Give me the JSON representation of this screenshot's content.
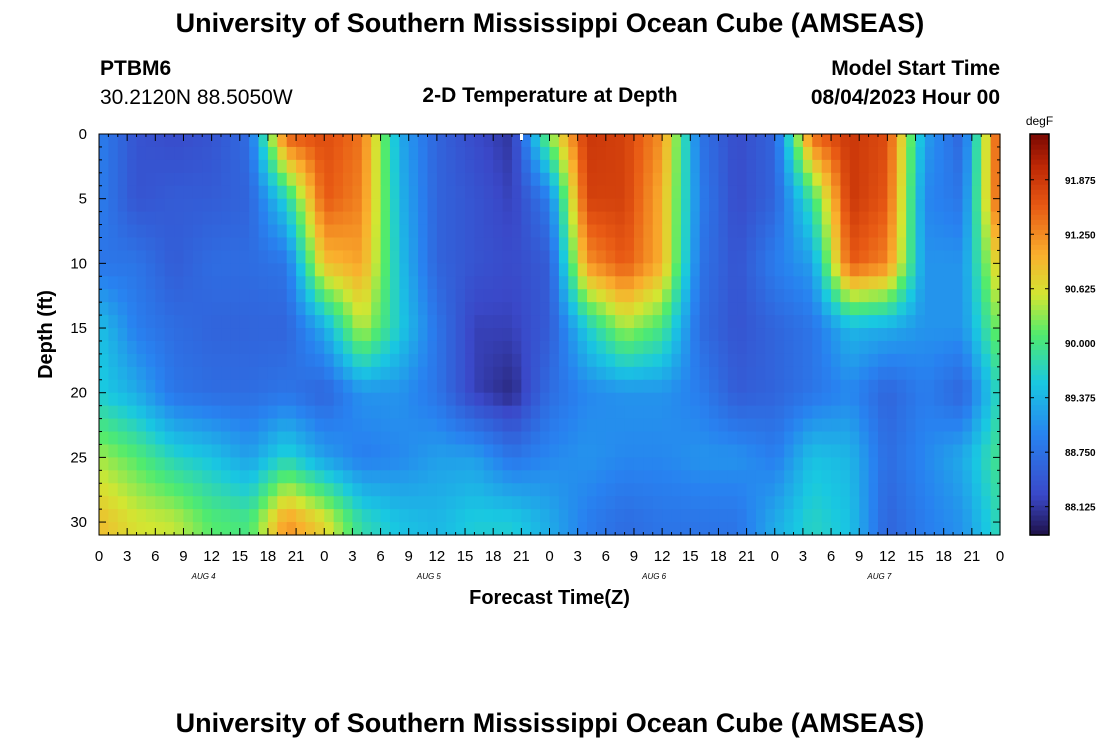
{
  "header": {
    "title": "University of Southern Mississippi Ocean Cube (AMSEAS)",
    "station_id": "PTBM6",
    "station_coords": "30.2120N  88.5050W",
    "plot_title": "2-D Temperature at Depth",
    "model_start_label": "Model Start Time",
    "model_start_value": "08/04/2023 Hour 00"
  },
  "footer": {
    "title": "University of Southern Mississippi Ocean Cube (AMSEAS)"
  },
  "chart_data": {
    "type": "heatmap",
    "title": "2-D Temperature at Depth",
    "xlabel": "Forecast Time(Z)",
    "ylabel": "Depth (ft)",
    "units": "degF",
    "x_range_hours": [
      0,
      96
    ],
    "x_tick_step_hours": 3,
    "x_tick_labels": [
      "0",
      "3",
      "6",
      "9",
      "12",
      "15",
      "18",
      "21",
      "0",
      "3",
      "6",
      "9",
      "12",
      "15",
      "18",
      "21",
      "0",
      "3",
      "6",
      "9",
      "12",
      "15",
      "18",
      "21",
      "0",
      "3",
      "6",
      "9",
      "12",
      "15",
      "18",
      "21",
      "0"
    ],
    "day_labels": [
      {
        "label": "AUG 4",
        "hour": 12
      },
      {
        "label": "AUG 5",
        "hour": 36
      },
      {
        "label": "AUG 6",
        "hour": 60
      },
      {
        "label": "AUG 7",
        "hour": 84
      }
    ],
    "ylim": [
      0,
      31
    ],
    "y_ticks": [
      0,
      5,
      10,
      15,
      20,
      25,
      30
    ],
    "colorbar": {
      "min": 87.8,
      "max": 92.4,
      "tick_labels": [
        "91.875",
        "91.250",
        "90.625",
        "90.000",
        "89.375",
        "88.750",
        "88.125"
      ],
      "tick_values": [
        91.875,
        91.25,
        90.625,
        90.0,
        89.375,
        88.75,
        88.125
      ]
    },
    "depth_levels_ft": [
      0,
      5,
      10,
      15,
      20,
      25,
      30
    ],
    "hours": [
      0,
      4,
      8,
      12,
      16,
      20,
      24,
      28,
      32,
      36,
      40,
      44,
      48,
      52,
      56,
      60,
      64,
      68,
      72,
      76,
      80,
      84,
      88,
      92,
      96
    ],
    "temperature_degF": [
      [
        88.9,
        88.4,
        88.3,
        88.4,
        88.7,
        91.6,
        91.7,
        91.4,
        89.3,
        88.6,
        88.3,
        88.1,
        90.3,
        91.9,
        91.8,
        91.2,
        88.8,
        88.3,
        88.6,
        91.5,
        91.9,
        91.7,
        89.2,
        88.6,
        91.8
      ],
      [
        88.9,
        88.4,
        88.5,
        88.5,
        88.6,
        89.7,
        91.6,
        91.3,
        89.4,
        88.6,
        88.4,
        88.2,
        88.9,
        91.8,
        91.8,
        91.0,
        88.9,
        88.3,
        88.6,
        89.9,
        91.9,
        91.6,
        89.0,
        88.8,
        91.7
      ],
      [
        88.8,
        88.8,
        88.5,
        88.7,
        88.7,
        88.8,
        90.9,
        91.1,
        89.5,
        88.6,
        88.4,
        88.3,
        88.5,
        91.2,
        91.6,
        91.0,
        88.8,
        88.4,
        88.9,
        89.2,
        91.6,
        91.3,
        89.1,
        89.1,
        90.9
      ],
      [
        89.5,
        88.9,
        88.7,
        88.6,
        88.6,
        88.6,
        89.3,
        90.5,
        89.6,
        88.8,
        88.2,
        88.2,
        88.5,
        89.6,
        90.4,
        90.0,
        88.7,
        88.4,
        88.6,
        88.8,
        89.4,
        89.3,
        89.1,
        89.1,
        90.3
      ],
      [
        89.6,
        89.3,
        88.8,
        88.7,
        88.7,
        88.8,
        88.6,
        89.1,
        89.1,
        88.8,
        88.2,
        88.0,
        88.7,
        89.0,
        89.1,
        89.1,
        88.9,
        88.5,
        88.6,
        88.8,
        89.0,
        88.6,
        88.9,
        88.6,
        89.8
      ],
      [
        90.4,
        90.1,
        89.7,
        89.5,
        89.2,
        89.7,
        89.2,
        88.9,
        89.0,
        89.2,
        89.2,
        88.8,
        89.0,
        89.1,
        89.0,
        89.0,
        89.1,
        89.1,
        88.9,
        89.5,
        89.4,
        88.7,
        89.0,
        89.3,
        90.0
      ],
      [
        90.9,
        90.6,
        90.5,
        90.1,
        90.0,
        91.2,
        90.7,
        89.8,
        89.5,
        89.4,
        89.6,
        89.6,
        89.3,
        88.9,
        88.7,
        88.8,
        88.8,
        88.8,
        89.3,
        89.7,
        89.5,
        88.6,
        88.9,
        89.1,
        89.8
      ]
    ]
  }
}
